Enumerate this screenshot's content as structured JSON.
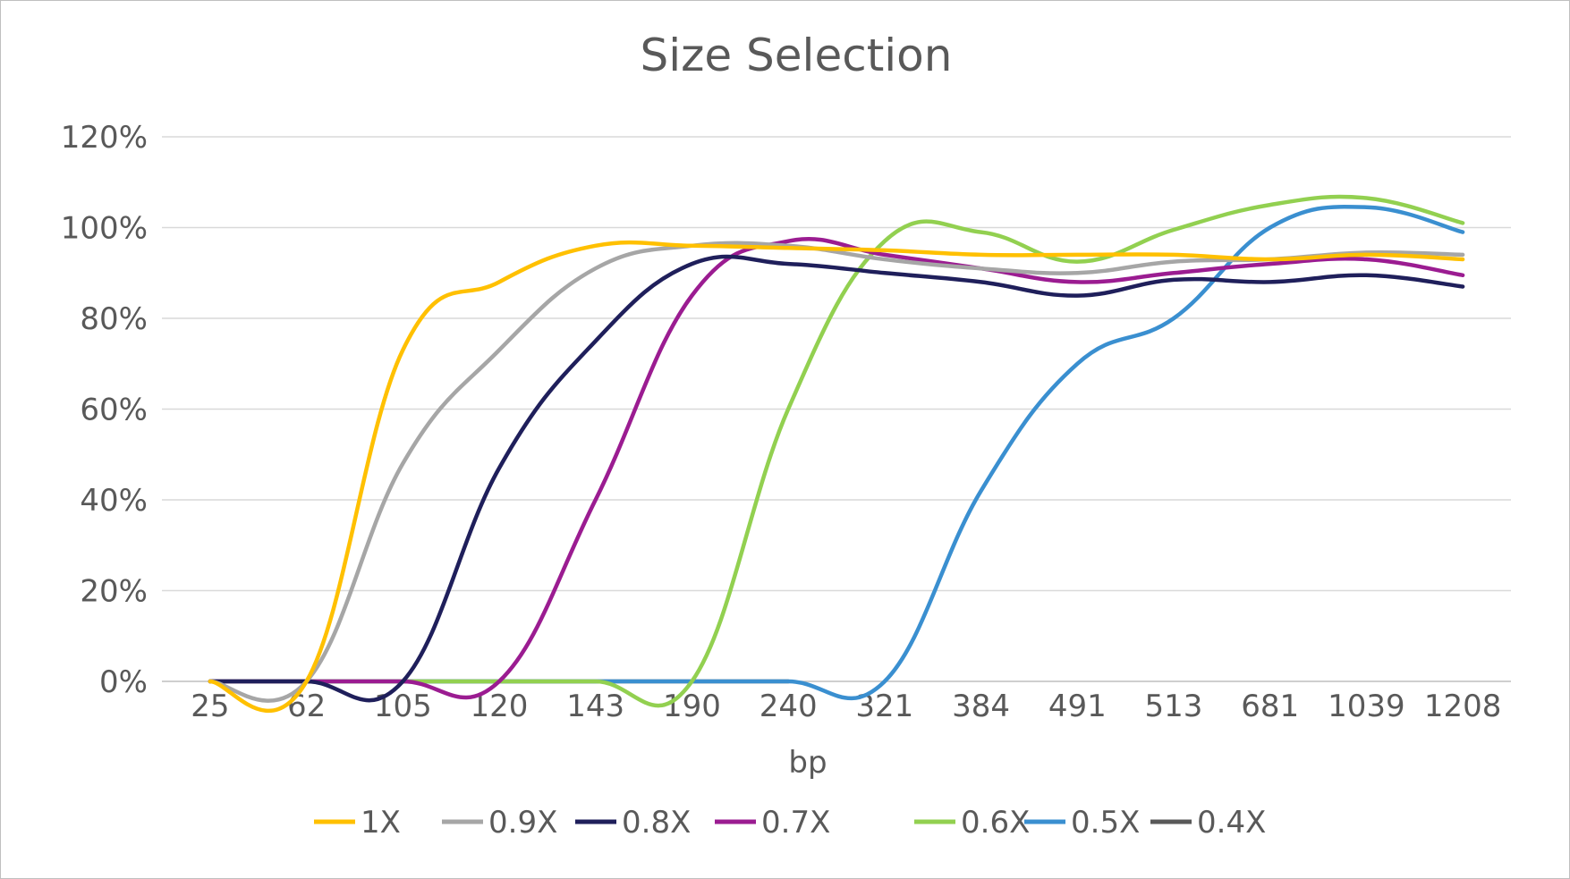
{
  "chart_data": {
    "type": "line",
    "title": "Size Selection",
    "xlabel": "bp",
    "ylabel": "",
    "ylim": [
      0,
      1.2
    ],
    "y_ticks": [
      0,
      0.2,
      0.4,
      0.6,
      0.8,
      1.0,
      1.2
    ],
    "y_tick_labels": [
      "0%",
      "20%",
      "40%",
      "60%",
      "80%",
      "100%",
      "120%"
    ],
    "categories": [
      "25",
      "62",
      "105",
      "120",
      "143",
      "190",
      "240",
      "321",
      "384",
      "491",
      "513",
      "681",
      "1039",
      "1208"
    ],
    "grid": true,
    "legend_position": "bottom",
    "series": [
      {
        "name": "1X",
        "color": "#FFC000",
        "values": [
          0.0,
          0.0,
          0.73,
          0.88,
          0.96,
          0.96,
          0.955,
          0.95,
          0.94,
          0.94,
          0.94,
          0.93,
          0.94,
          0.93
        ]
      },
      {
        "name": "0.9X",
        "color": "#A6A6A6",
        "values": [
          0.0,
          0.0,
          0.48,
          0.73,
          0.91,
          0.96,
          0.96,
          0.93,
          0.91,
          0.9,
          0.925,
          0.93,
          0.945,
          0.94
        ]
      },
      {
        "name": "0.8X",
        "color": "#1F1F5B",
        "values": [
          0.0,
          0.0,
          0.0,
          0.47,
          0.75,
          0.92,
          0.92,
          0.9,
          0.88,
          0.85,
          0.885,
          0.88,
          0.895,
          0.87
        ]
      },
      {
        "name": "0.7X",
        "color": "#9B1C91",
        "values": [
          0.0,
          0.0,
          0.0,
          0.0,
          0.4,
          0.85,
          0.97,
          0.94,
          0.91,
          0.88,
          0.9,
          0.92,
          0.93,
          0.895
        ]
      },
      {
        "name": "0.6X",
        "color": "#92D050",
        "values": [
          0.0,
          0.0,
          0.0,
          0.0,
          0.0,
          0.0,
          0.6,
          0.97,
          0.99,
          0.925,
          0.995,
          1.05,
          1.065,
          1.01
        ]
      },
      {
        "name": "0.5X",
        "color": "#3A8FD0",
        "values": [
          0.0,
          0.0,
          0.0,
          0.0,
          0.0,
          0.0,
          0.0,
          0.0,
          0.42,
          0.7,
          0.8,
          1.0,
          1.045,
          0.99
        ]
      },
      {
        "name": "0.4X",
        "color": "#595959",
        "values": [
          0.0,
          0.0,
          0.0,
          0.0,
          0.0,
          0.0,
          0.0,
          null,
          null,
          null,
          null,
          null,
          null,
          null
        ]
      }
    ]
  }
}
